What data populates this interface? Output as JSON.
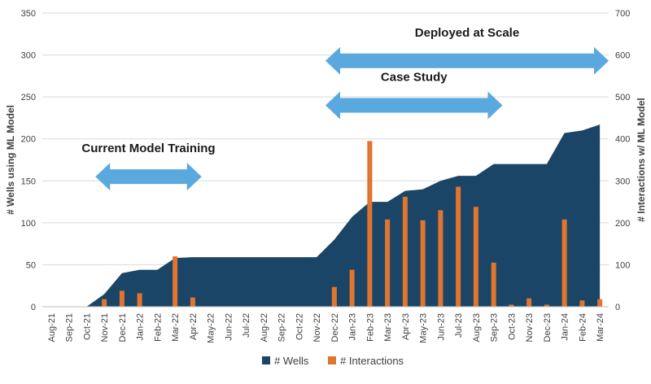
{
  "chart_data": {
    "type": "area+bar",
    "categories": [
      "Aug-21",
      "Sep-21",
      "Oct-21",
      "Nov-21",
      "Dec-21",
      "Jan-22",
      "Feb-22",
      "Mar-22",
      "Apr-22",
      "May-22",
      "Jun-22",
      "Jul-22",
      "Aug-22",
      "Sep-22",
      "Oct-22",
      "Nov-22",
      "Dec-22",
      "Jan-23",
      "Feb-23",
      "Mar-23",
      "Apr-23",
      "May-23",
      "Jun-23",
      "Jul-23",
      "Aug-23",
      "Sep-23",
      "Oct-23",
      "Nov-23",
      "Dec-23",
      "Jan-24",
      "Feb-24",
      "Mar-24"
    ],
    "series": [
      {
        "name": "# Wells",
        "type": "area",
        "axis": "left",
        "color": "#1b4566",
        "values": [
          0,
          0,
          0,
          15,
          40,
          44,
          44,
          58,
          59,
          59,
          59,
          59,
          59,
          59,
          59,
          59,
          80,
          107,
          125,
          125,
          138,
          140,
          150,
          156,
          156,
          170,
          170,
          170,
          170,
          207,
          210,
          217
        ]
      },
      {
        "name": "# Interactions",
        "type": "bar",
        "axis": "right",
        "color": "#e0752f",
        "values": [
          0,
          0,
          0,
          18,
          38,
          32,
          0,
          120,
          22,
          0,
          0,
          0,
          0,
          0,
          0,
          0,
          47,
          88,
          395,
          208,
          262,
          206,
          230,
          286,
          238,
          105,
          5,
          20,
          5,
          208,
          15,
          18
        ]
      }
    ],
    "ylabel_left": "# Wells using ML Model",
    "ylabel_right": "# Interactions w/ ML Model",
    "ylim_left": [
      0,
      350
    ],
    "ylim_right": [
      0,
      700
    ],
    "yticks_left": [
      "0",
      "50",
      "100",
      "150",
      "200",
      "250",
      "300",
      "350"
    ],
    "yticks_right": [
      "0",
      "100",
      "200",
      "300",
      "400",
      "500",
      "600",
      "700"
    ],
    "grid": true,
    "legend_position": "bottom",
    "arrow_color": "#5aa9de",
    "annotations": [
      {
        "text": "Current Model Training",
        "from": "Nov-21",
        "to": "Apr-22",
        "level": 155
      },
      {
        "text": "Case Study",
        "from": "Dec-22",
        "to": "Sep-23",
        "level": 240
      },
      {
        "text": "Deployed at Scale",
        "from": "Dec-22",
        "to": "Mar-24",
        "level": 293
      }
    ]
  }
}
